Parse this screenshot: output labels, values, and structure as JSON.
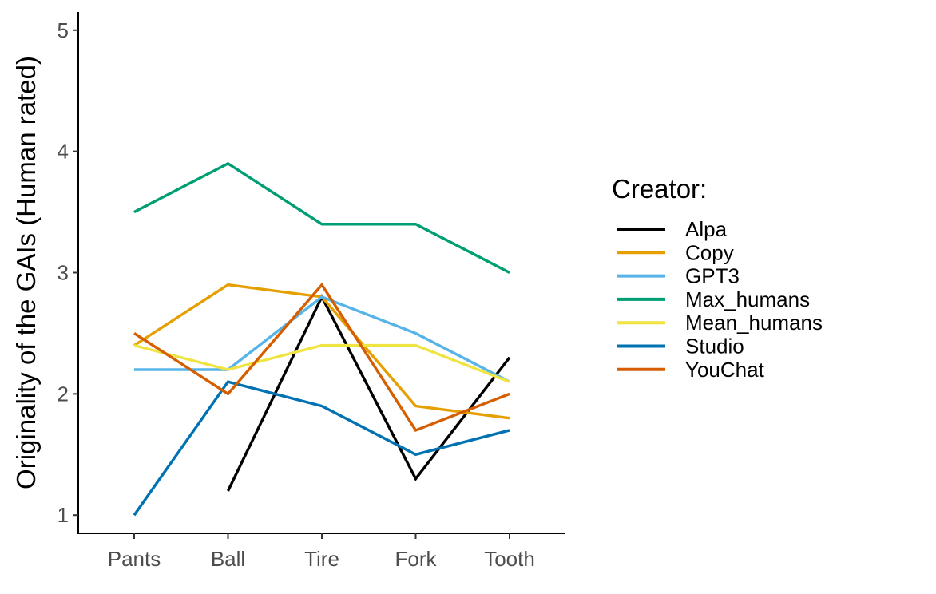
{
  "chart_data": {
    "type": "line",
    "title": "",
    "xlabel": "",
    "ylabel": "Originality of the GAIs (Human rated)",
    "categories": [
      "Pants",
      "Ball",
      "Tire",
      "Fork",
      "Tooth"
    ],
    "ylim": [
      0.85,
      5.15
    ],
    "yticks": [
      1,
      2,
      3,
      4,
      5
    ],
    "grid": false,
    "legend": {
      "title": "Creator:",
      "position": "right"
    },
    "series": [
      {
        "name": "Alpa",
        "color": "#000000",
        "values": [
          null,
          1.2,
          2.8,
          1.3,
          2.3
        ]
      },
      {
        "name": "Copy",
        "color": "#E69F00",
        "values": [
          2.4,
          2.9,
          2.8,
          1.9,
          1.8
        ]
      },
      {
        "name": "GPT3",
        "color": "#56B4E9",
        "values": [
          2.2,
          2.2,
          2.8,
          2.5,
          2.1
        ]
      },
      {
        "name": "Max_humans",
        "color": "#009E73",
        "values": [
          3.5,
          3.9,
          3.4,
          3.4,
          3.0
        ]
      },
      {
        "name": "Mean_humans",
        "color": "#F0E442",
        "values": [
          2.4,
          2.2,
          2.4,
          2.4,
          2.1
        ]
      },
      {
        "name": "Studio",
        "color": "#0072B2",
        "values": [
          1.0,
          2.1,
          1.9,
          1.5,
          1.7
        ]
      },
      {
        "name": "YouChat",
        "color": "#D55E00",
        "values": [
          2.5,
          2.0,
          2.9,
          1.7,
          2.0
        ]
      }
    ]
  }
}
